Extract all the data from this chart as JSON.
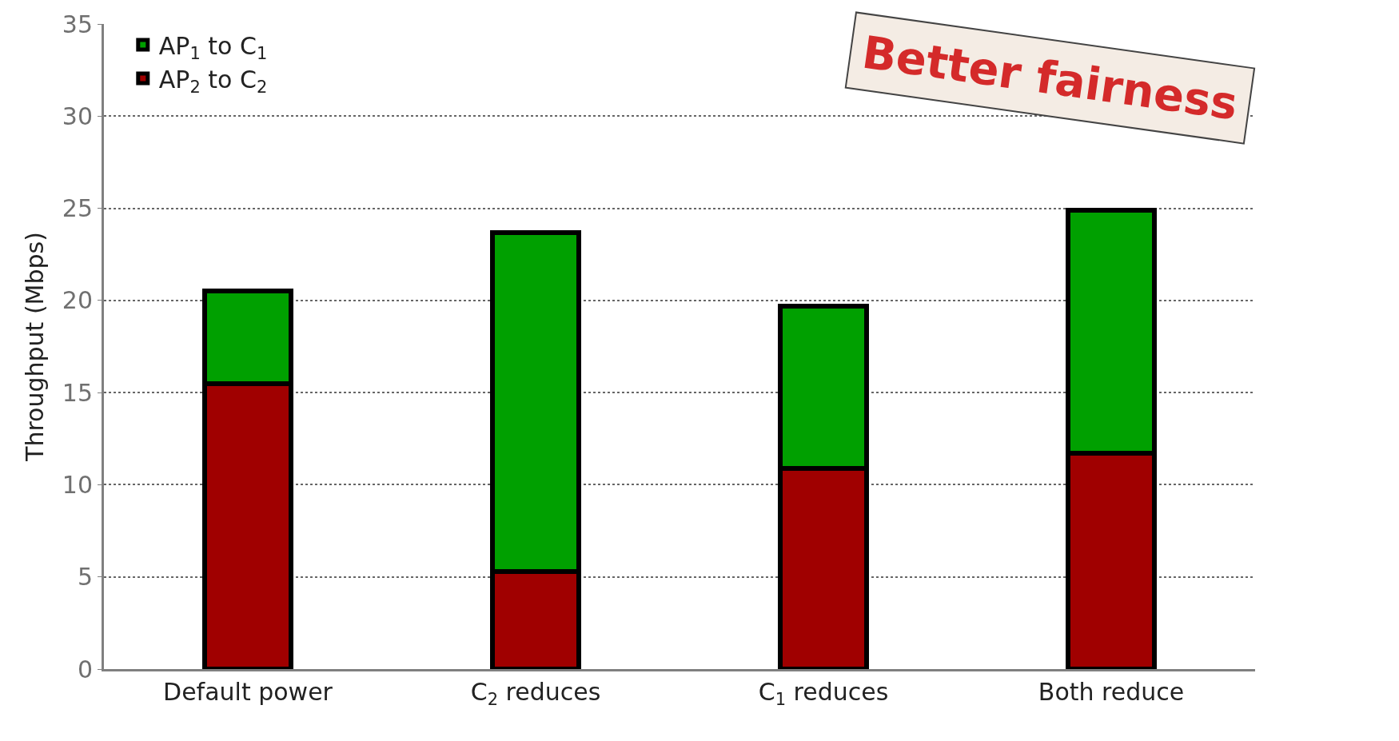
{
  "chart_data": {
    "type": "bar",
    "stacked": true,
    "ylabel": "Throughput (Mbps)",
    "categories": [
      "Default power",
      "C$_{2}$ reduces",
      "C$_{1}$ reduces",
      "Both reduce"
    ],
    "series": [
      {
        "name": "AP$_{2}$ to C$_{2}$",
        "color": "#a00000",
        "values": [
          15.5,
          5.3,
          10.9,
          11.7
        ]
      },
      {
        "name": "AP$_{1}$ to C$_{1}$",
        "color": "#00a000",
        "values": [
          5.0,
          18.4,
          8.8,
          13.2
        ]
      }
    ],
    "ylim": [
      0,
      35
    ],
    "yticks": [
      0,
      5,
      10,
      15,
      20,
      25,
      30,
      35
    ],
    "grid": "y",
    "legend": "top left",
    "annotations": [
      "Better fairness"
    ]
  }
}
